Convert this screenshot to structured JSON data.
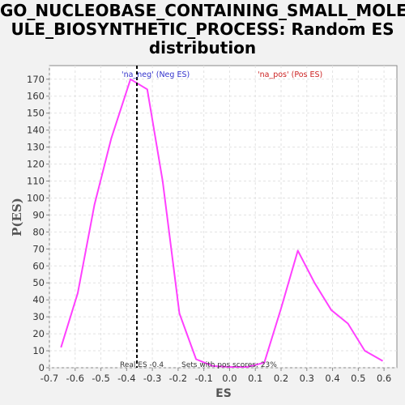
{
  "title_line1": "GO_NUCLEOBASE_CONTAINING_SMALL_MOLEC",
  "title_line2": "ULE_BIOSYNTHETIC_PROCESS: Random ES",
  "title_line3": "distribution",
  "chart_data": {
    "type": "line",
    "title": "GO_NUCLEOBASE_CONTAINING_SMALL_MOLECULE_BIOSYNTHETIC_PROCESS: Random ES distribution",
    "xlabel": "ES",
    "ylabel": "P(ES)",
    "xlim": [
      -0.7,
      0.65
    ],
    "ylim": [
      0,
      178
    ],
    "xticks": [
      "-0.7",
      "-0.6",
      "-0.5",
      "-0.4",
      "-0.3",
      "-0.2",
      "-0.1",
      "0.0",
      "0.1",
      "0.2",
      "0.3",
      "0.4",
      "0.5",
      "0.6"
    ],
    "xtick_values": [
      -0.7,
      -0.6,
      -0.5,
      -0.4,
      -0.3,
      -0.2,
      -0.1,
      0.0,
      0.1,
      0.2,
      0.3,
      0.4,
      0.5,
      0.6
    ],
    "yticks": [
      0,
      10,
      20,
      30,
      40,
      50,
      60,
      70,
      80,
      90,
      100,
      110,
      120,
      130,
      140,
      150,
      160,
      170
    ],
    "grid": true,
    "series": [
      {
        "color": "#ff40ff",
        "x": [
          -0.655,
          -0.59,
          -0.525,
          -0.46,
          -0.385,
          -0.32,
          -0.26,
          -0.195,
          -0.13,
          -0.065,
          0.0,
          0.07,
          0.135,
          0.2,
          0.265,
          0.33,
          0.395,
          0.46,
          0.525,
          0.595
        ],
        "y": [
          12,
          44,
          96,
          135,
          170,
          164,
          110,
          32,
          5,
          1,
          0.5,
          0.5,
          3,
          35,
          69,
          50,
          34,
          26,
          10,
          4
        ]
      }
    ],
    "real_es": -0.36,
    "annotations": {
      "neg_label": "'na_neg' (Neg ES)",
      "pos_label": "'na_pos' (Pos ES)",
      "real_es_text": "Real ES -0.4",
      "pos_scores_text": "Sets with pos scores: 23%"
    },
    "colors": {
      "neg": "#3333cc",
      "pos": "#cc2222",
      "line": "#ff40ff",
      "marker": "#000000"
    }
  }
}
